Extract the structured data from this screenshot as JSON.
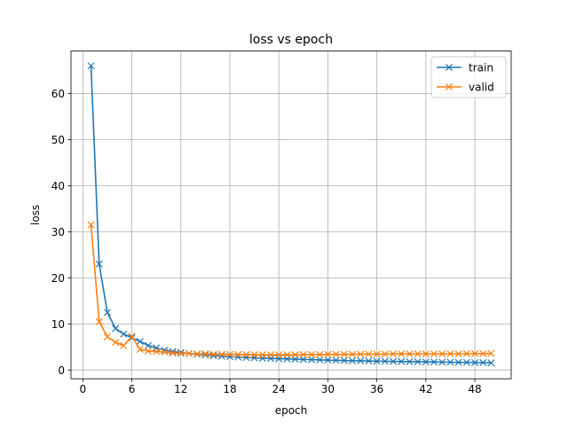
{
  "chart_data": {
    "type": "line",
    "title": "loss vs epoch",
    "xlabel": "epoch",
    "ylabel": "loss",
    "xlim": [
      -1.45,
      52.45
    ],
    "ylim": [
      -1.9,
      69.2
    ],
    "xticks": [
      0,
      6,
      12,
      18,
      24,
      30,
      36,
      42,
      48
    ],
    "yticks": [
      0,
      10,
      20,
      30,
      40,
      50,
      60
    ],
    "grid": true,
    "legend_position": "top-right",
    "marker": "x",
    "x": [
      1,
      2,
      3,
      4,
      5,
      6,
      7,
      8,
      9,
      10,
      11,
      12,
      13,
      14,
      15,
      16,
      17,
      18,
      19,
      20,
      21,
      22,
      23,
      24,
      25,
      26,
      27,
      28,
      29,
      30,
      31,
      32,
      33,
      34,
      35,
      36,
      37,
      38,
      39,
      40,
      41,
      42,
      43,
      44,
      45,
      46,
      47,
      48,
      49,
      50
    ],
    "series": [
      {
        "name": "train",
        "color": "#1f77b4",
        "values": [
          66.0,
          23.0,
          12.5,
          9.0,
          7.8,
          7.0,
          6.2,
          5.3,
          4.8,
          4.3,
          4.0,
          3.8,
          3.6,
          3.4,
          3.3,
          3.1,
          3.0,
          2.9,
          2.8,
          2.7,
          2.65,
          2.55,
          2.5,
          2.45,
          2.4,
          2.35,
          2.3,
          2.25,
          2.2,
          2.15,
          2.1,
          2.05,
          2.0,
          2.0,
          1.95,
          1.9,
          1.9,
          1.85,
          1.85,
          1.8,
          1.8,
          1.75,
          1.75,
          1.7,
          1.7,
          1.65,
          1.65,
          1.6,
          1.6,
          1.55
        ]
      },
      {
        "name": "valid",
        "color": "#ff7f0e",
        "values": [
          31.5,
          10.5,
          7.2,
          6.0,
          5.3,
          7.3,
          4.5,
          4.1,
          4.0,
          3.9,
          3.7,
          3.6,
          3.6,
          3.5,
          3.5,
          3.4,
          3.4,
          3.4,
          3.35,
          3.35,
          3.3,
          3.3,
          3.3,
          3.3,
          3.3,
          3.3,
          3.35,
          3.35,
          3.35,
          3.4,
          3.4,
          3.4,
          3.4,
          3.45,
          3.45,
          3.45,
          3.45,
          3.5,
          3.5,
          3.5,
          3.5,
          3.5,
          3.5,
          3.5,
          3.5,
          3.5,
          3.55,
          3.55,
          3.55,
          3.6
        ]
      }
    ]
  }
}
